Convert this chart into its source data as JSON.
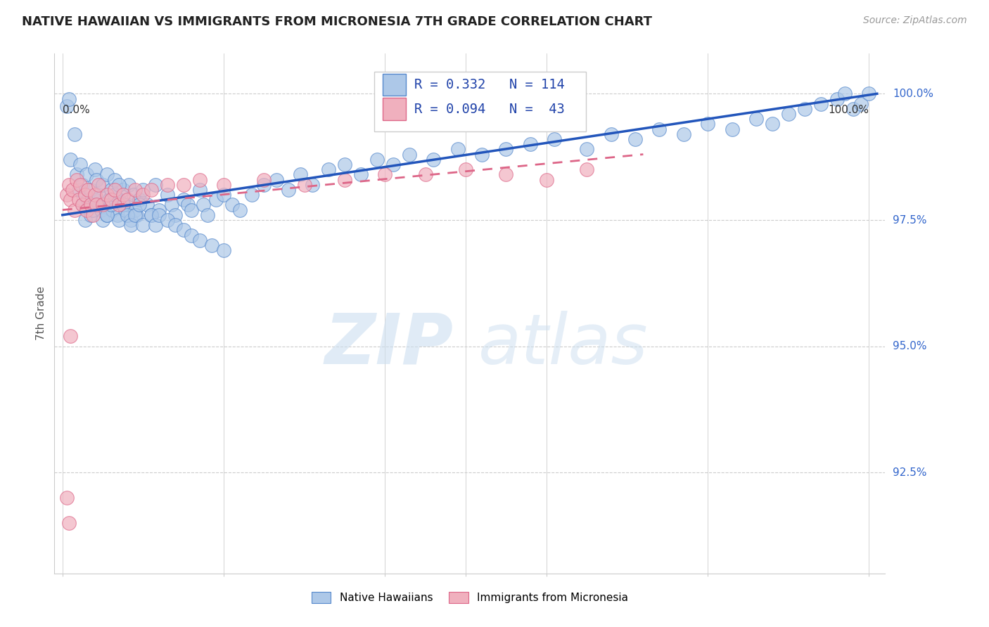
{
  "title": "NATIVE HAWAIIAN VS IMMIGRANTS FROM MICRONESIA 7TH GRADE CORRELATION CHART",
  "source": "Source: ZipAtlas.com",
  "ylabel": "7th Grade",
  "xlim": [
    -0.01,
    1.02
  ],
  "ylim": [
    0.905,
    1.008
  ],
  "yticks": [
    0.925,
    0.95,
    0.975,
    1.0
  ],
  "ytick_labels": [
    "92.5%",
    "95.0%",
    "97.5%",
    "100.0%"
  ],
  "blue_legend_label": "Native Hawaiians",
  "pink_legend_label": "Immigrants from Micronesia",
  "blue_R": 0.332,
  "blue_N": 114,
  "pink_R": 0.094,
  "pink_N": 43,
  "background_color": "#ffffff",
  "grid_color": "#cccccc",
  "blue_fill": "#adc8e8",
  "blue_edge": "#5588cc",
  "pink_fill": "#f0b0be",
  "pink_edge": "#dd6688",
  "blue_line_color": "#2255bb",
  "pink_line_color": "#cc4466",
  "watermark_zip": "ZIP",
  "watermark_atlas": "atlas",
  "blue_scatter_x": [
    0.005,
    0.008,
    0.01,
    0.015,
    0.018,
    0.02,
    0.022,
    0.025,
    0.025,
    0.028,
    0.03,
    0.032,
    0.035,
    0.035,
    0.038,
    0.04,
    0.04,
    0.042,
    0.045,
    0.048,
    0.05,
    0.05,
    0.052,
    0.055,
    0.055,
    0.058,
    0.06,
    0.062,
    0.065,
    0.068,
    0.07,
    0.07,
    0.075,
    0.078,
    0.08,
    0.082,
    0.085,
    0.088,
    0.09,
    0.092,
    0.095,
    0.1,
    0.105,
    0.11,
    0.115,
    0.12,
    0.13,
    0.135,
    0.14,
    0.15,
    0.155,
    0.16,
    0.17,
    0.175,
    0.18,
    0.19,
    0.2,
    0.21,
    0.22,
    0.235,
    0.25,
    0.265,
    0.28,
    0.295,
    0.31,
    0.33,
    0.35,
    0.37,
    0.39,
    0.41,
    0.43,
    0.46,
    0.49,
    0.52,
    0.55,
    0.58,
    0.61,
    0.65,
    0.68,
    0.71,
    0.74,
    0.77,
    0.8,
    0.83,
    0.86,
    0.88,
    0.9,
    0.92,
    0.94,
    0.96,
    0.97,
    0.98,
    0.99,
    1.0,
    0.055,
    0.06,
    0.065,
    0.07,
    0.075,
    0.08,
    0.085,
    0.09,
    0.095,
    0.1,
    0.11,
    0.115,
    0.12,
    0.13,
    0.14,
    0.15,
    0.16,
    0.17,
    0.185,
    0.2
  ],
  "blue_scatter_y": [
    0.9975,
    0.999,
    0.987,
    0.992,
    0.984,
    0.981,
    0.986,
    0.978,
    0.982,
    0.975,
    0.984,
    0.979,
    0.976,
    0.981,
    0.977,
    0.985,
    0.979,
    0.983,
    0.98,
    0.977,
    0.975,
    0.982,
    0.978,
    0.984,
    0.976,
    0.979,
    0.981,
    0.977,
    0.983,
    0.976,
    0.979,
    0.975,
    0.981,
    0.977,
    0.978,
    0.982,
    0.975,
    0.98,
    0.977,
    0.976,
    0.979,
    0.981,
    0.978,
    0.976,
    0.982,
    0.977,
    0.98,
    0.978,
    0.976,
    0.979,
    0.978,
    0.977,
    0.981,
    0.978,
    0.976,
    0.979,
    0.98,
    0.978,
    0.977,
    0.98,
    0.982,
    0.983,
    0.981,
    0.984,
    0.982,
    0.985,
    0.986,
    0.984,
    0.987,
    0.986,
    0.988,
    0.987,
    0.989,
    0.988,
    0.989,
    0.99,
    0.991,
    0.989,
    0.992,
    0.991,
    0.993,
    0.992,
    0.994,
    0.993,
    0.995,
    0.994,
    0.996,
    0.997,
    0.998,
    0.999,
    1.0,
    0.997,
    0.998,
    1.0,
    0.976,
    0.978,
    0.98,
    0.982,
    0.978,
    0.976,
    0.974,
    0.976,
    0.978,
    0.974,
    0.976,
    0.974,
    0.976,
    0.975,
    0.974,
    0.973,
    0.972,
    0.971,
    0.97,
    0.969
  ],
  "pink_scatter_x": [
    0.005,
    0.008,
    0.01,
    0.012,
    0.015,
    0.018,
    0.02,
    0.022,
    0.025,
    0.028,
    0.03,
    0.032,
    0.035,
    0.038,
    0.04,
    0.042,
    0.045,
    0.05,
    0.055,
    0.06,
    0.065,
    0.07,
    0.075,
    0.08,
    0.09,
    0.1,
    0.11,
    0.13,
    0.15,
    0.17,
    0.2,
    0.25,
    0.3,
    0.35,
    0.4,
    0.45,
    0.5,
    0.55,
    0.6,
    0.65,
    0.005,
    0.008,
    0.01
  ],
  "pink_scatter_y": [
    0.98,
    0.982,
    0.979,
    0.981,
    0.977,
    0.983,
    0.979,
    0.982,
    0.978,
    0.98,
    0.977,
    0.981,
    0.978,
    0.976,
    0.98,
    0.978,
    0.982,
    0.978,
    0.98,
    0.979,
    0.981,
    0.978,
    0.98,
    0.979,
    0.981,
    0.98,
    0.981,
    0.982,
    0.982,
    0.983,
    0.982,
    0.983,
    0.982,
    0.983,
    0.984,
    0.984,
    0.985,
    0.984,
    0.983,
    0.985,
    0.92,
    0.915,
    0.952
  ],
  "pink_line_x": [
    0.0,
    0.72
  ],
  "blue_line_x": [
    0.0,
    1.01
  ]
}
